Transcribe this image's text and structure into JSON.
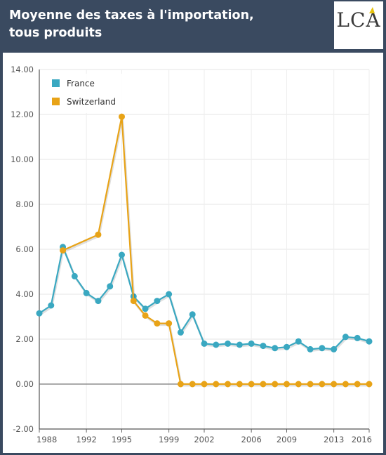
{
  "header": {
    "title_line1": "Moyenne des taxes à l'importation,",
    "title_line2": "tous produits",
    "logo": "LCA"
  },
  "chart_data": {
    "type": "line",
    "title": "Moyenne des taxes à l'importation, tous produits",
    "xlabel": "",
    "ylabel": "",
    "xlim": [
      1988,
      2016
    ],
    "ylim": [
      -2,
      14
    ],
    "x_ticks": [
      "1988",
      "1992",
      "1995",
      "1999",
      "2002",
      "2006",
      "2009",
      "2013",
      "2016"
    ],
    "y_ticks": [
      "14.00",
      "12.00",
      "10.00",
      "8.00",
      "6.00",
      "4.00",
      "2.00",
      "0.00",
      "-2.00"
    ],
    "grid": true,
    "legend_position": "top-left",
    "series": [
      {
        "name": "France",
        "color": "#3aa8c1",
        "x": [
          1988,
          1989,
          1990,
          1991,
          1992,
          1993,
          1994,
          1995,
          1996,
          1997,
          1998,
          1999,
          2000,
          2001,
          2002,
          2003,
          2004,
          2005,
          2006,
          2007,
          2008,
          2009,
          2010,
          2011,
          2012,
          2013,
          2014,
          2015,
          2016
        ],
        "values": [
          3.15,
          3.5,
          6.1,
          4.8,
          4.05,
          3.7,
          4.35,
          5.75,
          3.9,
          3.35,
          3.7,
          4.0,
          2.3,
          3.1,
          1.8,
          1.75,
          1.8,
          1.75,
          1.8,
          1.7,
          1.6,
          1.65,
          1.9,
          1.55,
          1.6,
          1.55,
          2.1,
          2.05,
          1.9
        ]
      },
      {
        "name": "Switzerland",
        "color": "#e8a317",
        "x": [
          1990,
          1993,
          1995,
          1996,
          1997,
          1998,
          1999,
          2000,
          2001,
          2002,
          2003,
          2004,
          2005,
          2006,
          2007,
          2008,
          2009,
          2010,
          2011,
          2012,
          2013,
          2014,
          2015,
          2016
        ],
        "values": [
          5.95,
          6.65,
          11.9,
          3.7,
          3.05,
          2.7,
          2.7,
          0.0,
          0.0,
          0.0,
          0.0,
          0.0,
          0.0,
          0.0,
          0.0,
          0.0,
          0.0,
          0.0,
          0.0,
          0.0,
          0.0,
          0.0,
          0.0,
          0.0
        ]
      }
    ]
  }
}
